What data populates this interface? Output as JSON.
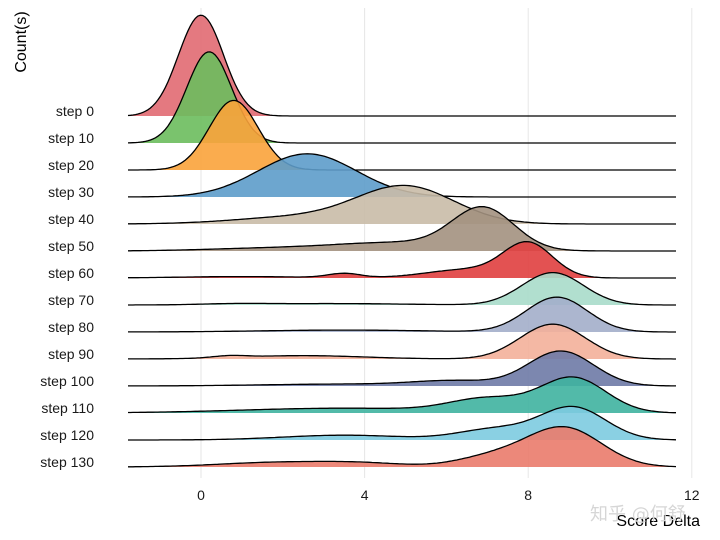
{
  "chart_data": {
    "type": "ridgeline",
    "xlabel": "Score Delta",
    "ylabel": "Count(s)",
    "xlim": [
      -2,
      12
    ],
    "x_ticks": [
      0,
      4,
      8,
      12
    ],
    "grid": "vertical",
    "watermark": "知乎 @何舒",
    "series": [
      {
        "name": "step 0",
        "color": "#e16a72",
        "peaks": [
          [
            0.0,
            0.55,
            4.2
          ]
        ]
      },
      {
        "name": "step 10",
        "color": "#6bbd5d",
        "peaks": [
          [
            0.2,
            0.55,
            3.8
          ]
        ]
      },
      {
        "name": "step 20",
        "color": "#f9a33b",
        "peaks": [
          [
            0.8,
            0.6,
            2.9
          ]
        ]
      },
      {
        "name": "step 30",
        "color": "#5d9cca",
        "peaks": [
          [
            2.6,
            1.2,
            1.8
          ]
        ]
      },
      {
        "name": "step 40",
        "color": "#c9bba7",
        "peaks": [
          [
            5.0,
            1.2,
            1.55
          ],
          [
            2.3,
            1.5,
            0.28
          ]
        ]
      },
      {
        "name": "step 50",
        "color": "#a39180",
        "peaks": [
          [
            6.9,
            0.75,
            1.7
          ],
          [
            4.8,
            1.6,
            0.35
          ],
          [
            1.5,
            1.5,
            0.1
          ]
        ]
      },
      {
        "name": "step 60",
        "color": "#e03f3f",
        "peaks": [
          [
            8.0,
            0.6,
            1.4
          ],
          [
            6.5,
            1.0,
            0.35
          ],
          [
            3.5,
            0.4,
            0.18
          ],
          [
            1.0,
            1.5,
            0.06
          ]
        ]
      },
      {
        "name": "step 70",
        "color": "#a8dcca",
        "peaks": [
          [
            8.6,
            0.75,
            1.35
          ],
          [
            3.2,
            1.8,
            0.06
          ],
          [
            0.8,
            0.8,
            0.04
          ]
        ]
      },
      {
        "name": "step 80",
        "color": "#a3aeca",
        "peaks": [
          [
            8.7,
            0.75,
            1.45
          ],
          [
            3.5,
            2.0,
            0.08
          ]
        ]
      },
      {
        "name": "step 90",
        "color": "#f3b09a",
        "peaks": [
          [
            8.6,
            0.8,
            1.45
          ],
          [
            2.5,
            1.5,
            0.14
          ],
          [
            0.7,
            0.4,
            0.08
          ]
        ]
      },
      {
        "name": "step 100",
        "color": "#6e7aa6",
        "peaks": [
          [
            8.8,
            0.8,
            1.45
          ],
          [
            6.2,
            1.0,
            0.2
          ],
          [
            3.5,
            2.0,
            0.08
          ]
        ]
      },
      {
        "name": "step 110",
        "color": "#3fb3a0",
        "peaks": [
          [
            9.1,
            0.8,
            1.45
          ],
          [
            7.0,
            0.9,
            0.55
          ],
          [
            3.5,
            2.5,
            0.2
          ]
        ]
      },
      {
        "name": "step 120",
        "color": "#7dcbe0",
        "peaks": [
          [
            9.1,
            0.8,
            1.35
          ],
          [
            7.2,
            0.9,
            0.45
          ],
          [
            3.5,
            1.5,
            0.2
          ]
        ]
      },
      {
        "name": "step 130",
        "color": "#ea7b6c",
        "peaks": [
          [
            8.9,
            0.9,
            1.6
          ],
          [
            7.2,
            0.9,
            0.45
          ],
          [
            2.0,
            1.5,
            0.2
          ],
          [
            4.0,
            1.0,
            0.12
          ]
        ]
      }
    ]
  }
}
